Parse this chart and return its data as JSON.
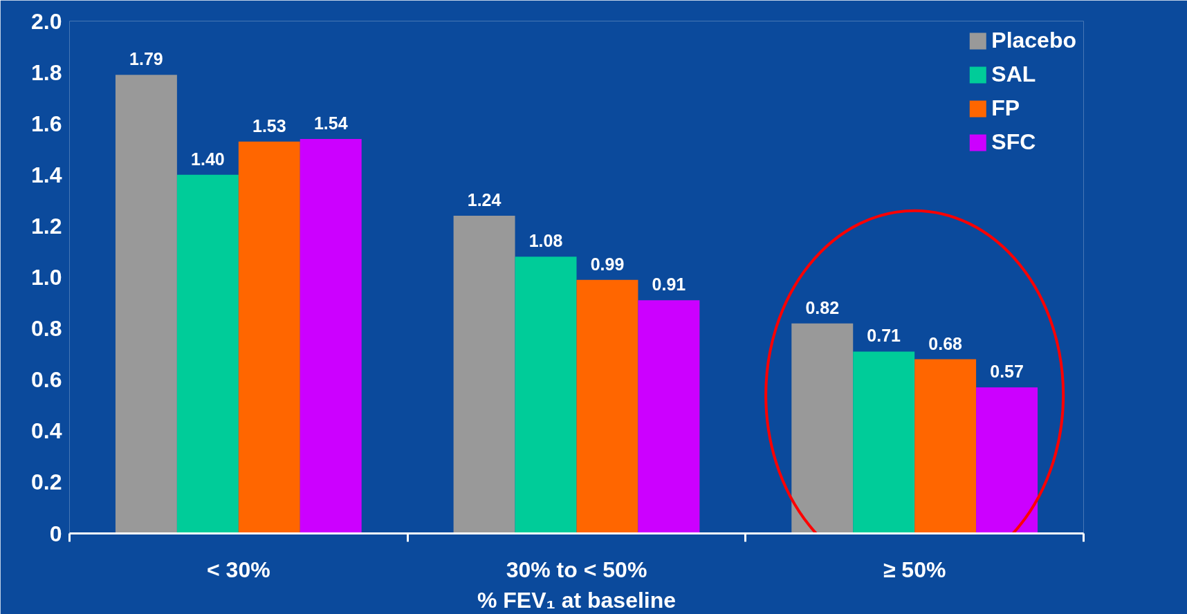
{
  "chart_data": {
    "type": "bar",
    "xlabel": "% FEV₁ at baseline",
    "categories": [
      "< 30%",
      "30% to < 50%",
      "≥ 50%"
    ],
    "series": [
      {
        "name": "Placebo",
        "color": "#999999",
        "values": [
          1.79,
          1.24,
          0.82
        ],
        "value_labels": [
          "1.79",
          "1.24",
          "0.82"
        ]
      },
      {
        "name": "SAL",
        "color": "#00cc99",
        "values": [
          1.4,
          1.08,
          0.71
        ],
        "value_labels": [
          "1.40",
          "1.08",
          "0.71"
        ]
      },
      {
        "name": "FP",
        "color": "#ff6600",
        "values": [
          1.53,
          0.99,
          0.68
        ],
        "value_labels": [
          "1.53",
          "0.99",
          "0.68"
        ]
      },
      {
        "name": "SFC",
        "color": "#cc00ff",
        "values": [
          1.54,
          0.91,
          0.57
        ],
        "value_labels": [
          "1.54",
          "0.91",
          "0.57"
        ]
      }
    ],
    "ylim": [
      0,
      2.0
    ],
    "yticks": [
      0,
      0.2,
      0.4,
      0.6,
      0.8,
      {
        "value": 1,
        "label": "1.0"
      },
      1.2,
      1.4,
      1.6,
      1.8,
      {
        "value": 2,
        "label": "2.0"
      }
    ],
    "legend": "top right"
  }
}
